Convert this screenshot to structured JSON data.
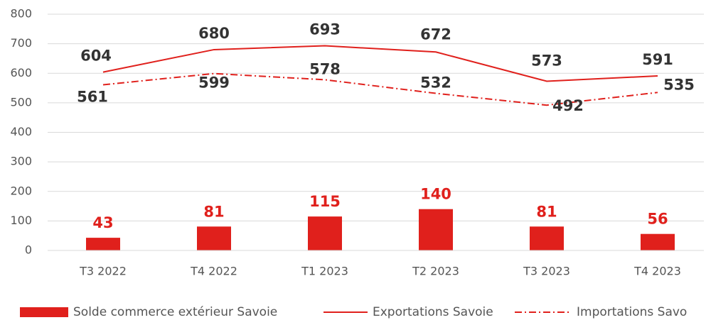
{
  "chart_data": {
    "type": "bar+line",
    "categories": [
      "T3 2022",
      "T4 2022",
      "T1 2023",
      "T2 2023",
      "T3 2023",
      "T4 2023"
    ],
    "series": [
      {
        "name": "Solde commerce extérieur Savoie",
        "type": "bar",
        "color": "#e0201c",
        "values": [
          43,
          81,
          115,
          140,
          81,
          56
        ]
      },
      {
        "name": "Exportations Savoie",
        "type": "line",
        "style": "solid",
        "color": "#e0201c",
        "values": [
          604,
          680,
          693,
          672,
          573,
          591
        ]
      },
      {
        "name": "Importations Savo",
        "type": "line",
        "style": "dashdot",
        "color": "#e0201c",
        "values": [
          561,
          599,
          578,
          532,
          492,
          535
        ]
      }
    ],
    "ylim": [
      0,
      800
    ],
    "yticks": [
      0,
      100,
      200,
      300,
      400,
      500,
      600,
      700,
      800
    ],
    "grid": true,
    "legend": "bottom"
  }
}
